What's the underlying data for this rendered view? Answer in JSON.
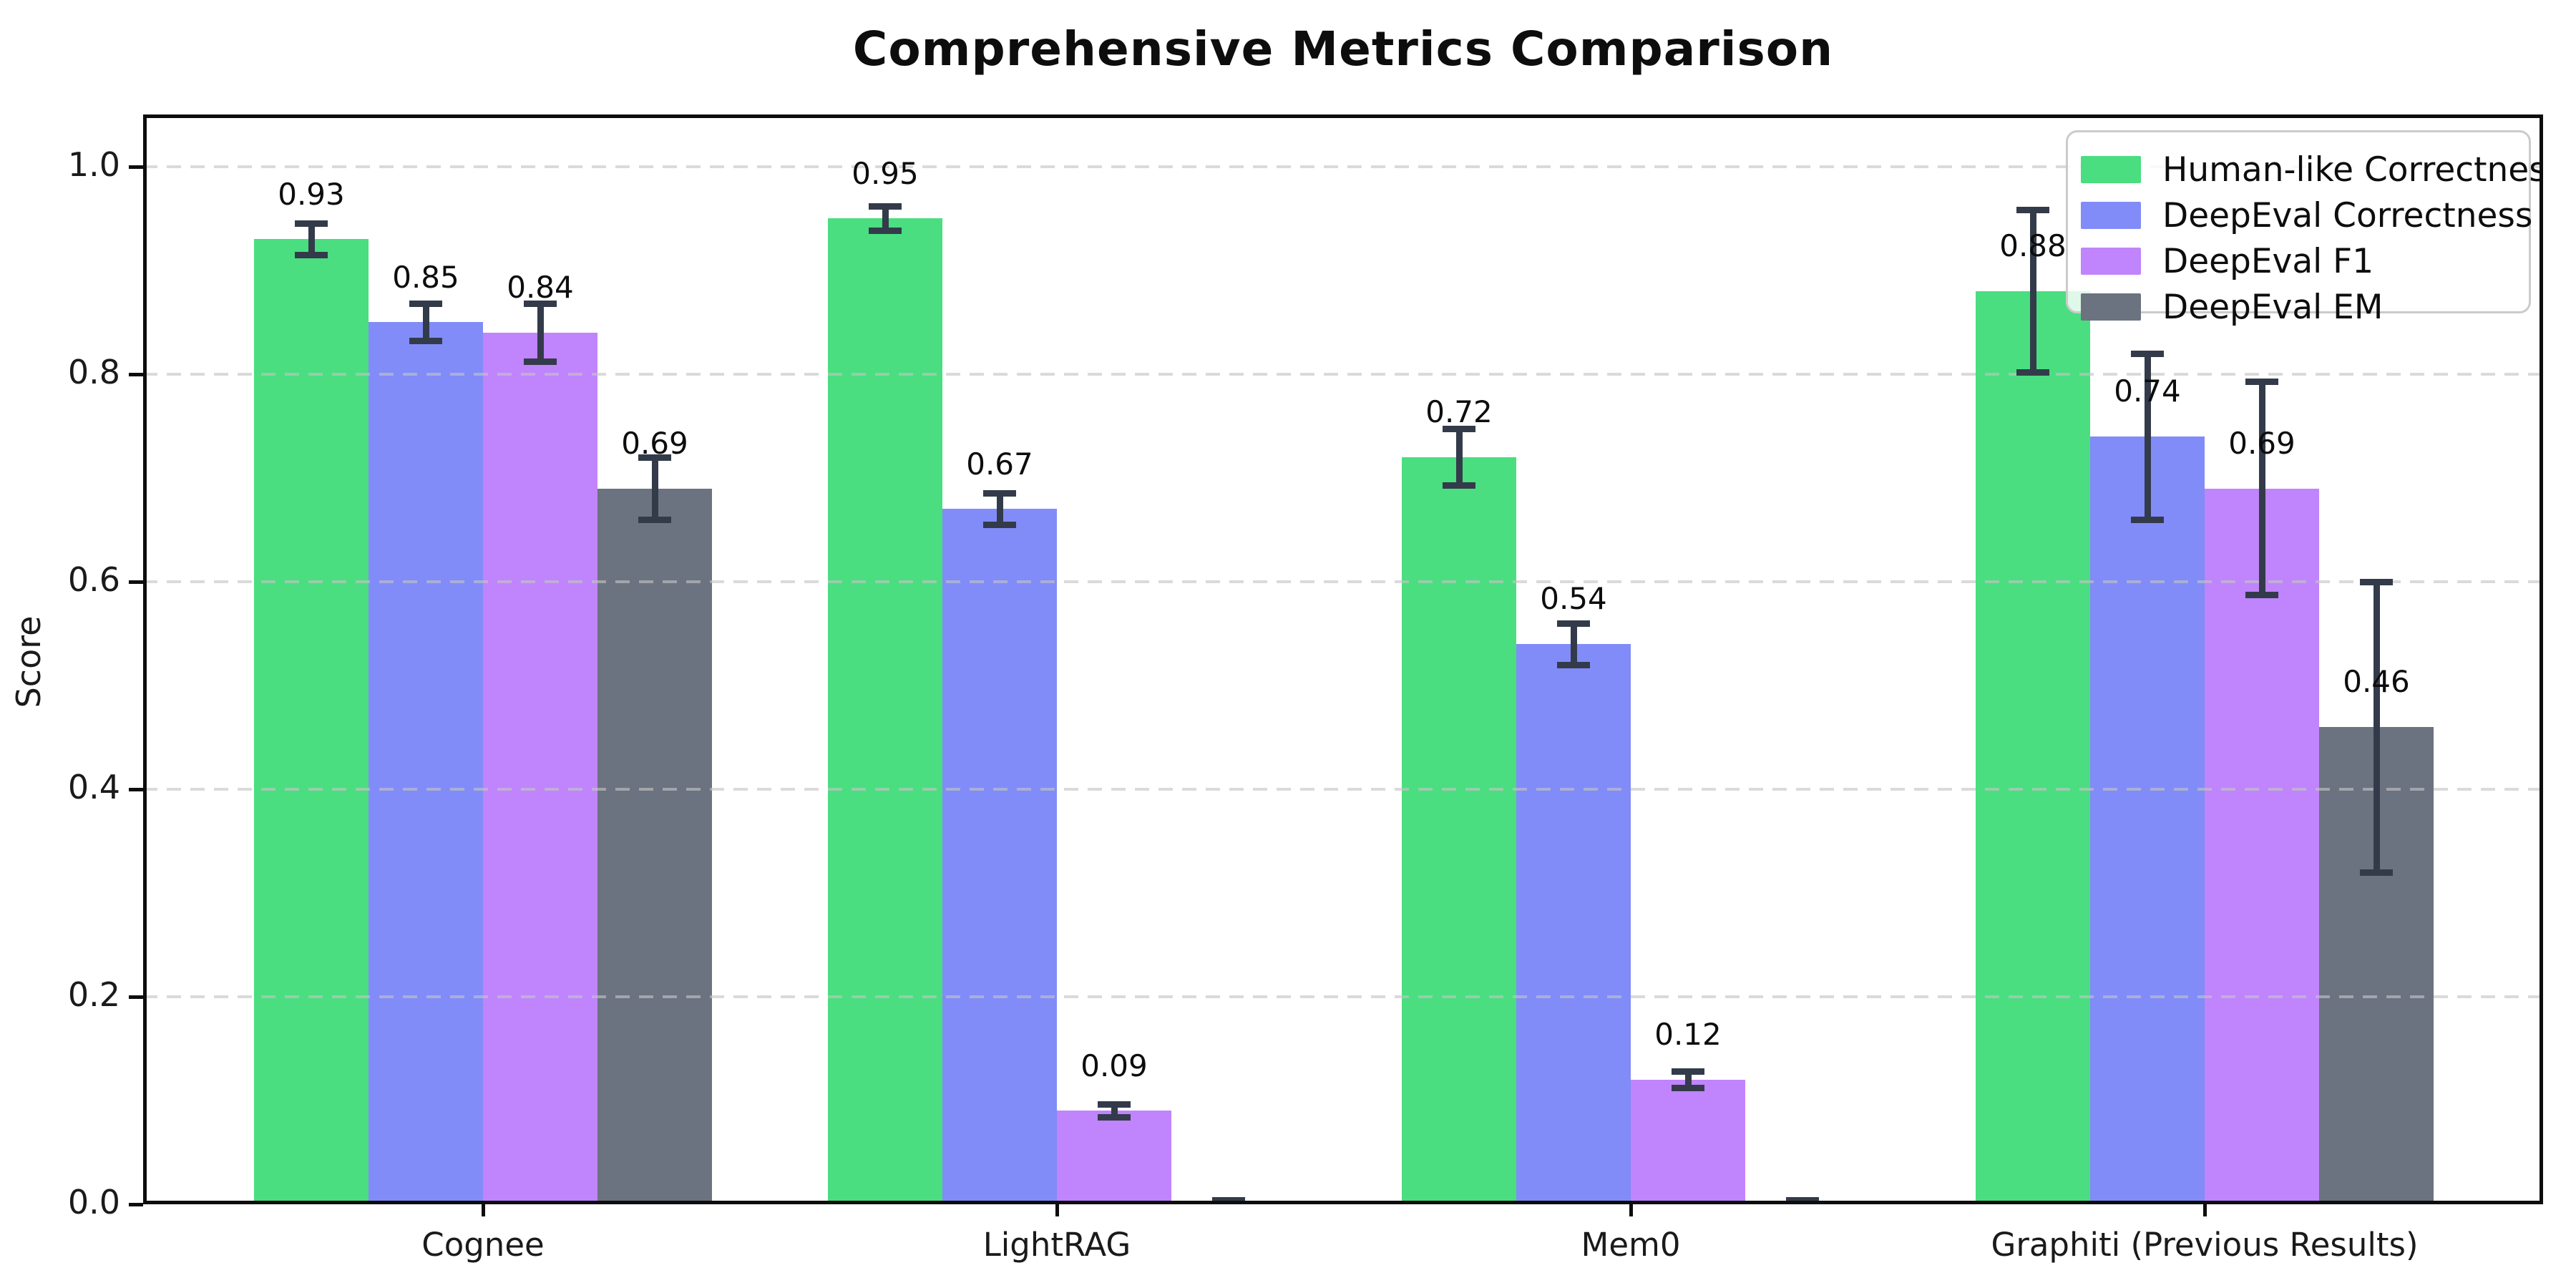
{
  "chart_data": {
    "type": "bar",
    "title": "Comprehensive Metrics Comparison",
    "ylabel": "Score",
    "xlabel": "",
    "categories": [
      "Cognee",
      "LightRAG",
      "Mem0",
      "Graphiti (Previous Results)"
    ],
    "series": [
      {
        "name": "Human-like Correctness",
        "color": "#4ade80",
        "values": [
          0.93,
          0.95,
          0.72,
          0.88
        ],
        "errors": [
          0.015,
          0.012,
          0.027,
          0.078
        ],
        "labels": [
          "0.93",
          "0.95",
          "0.72",
          "0.88"
        ]
      },
      {
        "name": "DeepEval Correctness",
        "color": "#818cf8",
        "values": [
          0.85,
          0.67,
          0.54,
          0.74
        ],
        "errors": [
          0.018,
          0.015,
          0.02,
          0.08
        ],
        "labels": [
          "0.85",
          "0.67",
          "0.54",
          "0.74"
        ]
      },
      {
        "name": "DeepEval F1",
        "color": "#c084fc",
        "values": [
          0.84,
          0.09,
          0.12,
          0.69
        ],
        "errors": [
          0.028,
          0.006,
          0.008,
          0.103
        ],
        "labels": [
          "0.84",
          "0.09",
          "0.12",
          "0.69"
        ]
      },
      {
        "name": "DeepEval EM",
        "color": "#6b7280",
        "values": [
          0.69,
          0.0,
          0.0,
          0.46
        ],
        "errors": [
          0.03,
          0.004,
          0.004,
          0.14
        ],
        "labels": [
          "0.69",
          "",
          "",
          "0.46"
        ]
      }
    ],
    "yticks": {
      "values": [
        0.0,
        0.2,
        0.4,
        0.6,
        0.8,
        1.0
      ],
      "labels": [
        "0.0",
        "0.2",
        "0.4",
        "0.6",
        "0.8",
        "1.0"
      ]
    },
    "ylim": [
      0,
      1.05
    ],
    "grid": {
      "axis": "y",
      "style": "dashed",
      "color": "#d9d9d9"
    },
    "legend": {
      "position": "upper right",
      "entries": [
        "Human-like Correctness",
        "DeepEval Correctness",
        "DeepEval F1",
        "DeepEval EM"
      ]
    },
    "error_bar_color": "#333b4a",
    "axis_color": "#0d0d0d",
    "background": "#ffffff"
  }
}
